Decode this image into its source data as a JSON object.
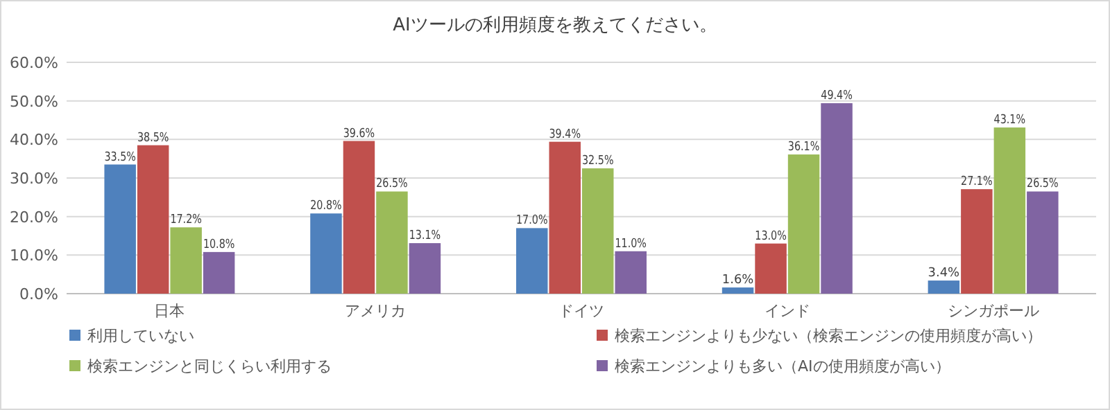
{
  "chart_data": {
    "type": "bar",
    "title": "AIツールの利用頻度を教えてください。",
    "categories": [
      "日本",
      "アメリカ",
      "ドイツ",
      "インド",
      "シンガポール"
    ],
    "series": [
      {
        "name": "利用していない",
        "color": "#4f81bd",
        "values": [
          33.5,
          20.8,
          17.0,
          1.6,
          3.4
        ],
        "value_labels": [
          "33.5%",
          "20.8%",
          "17.0%",
          "1.6%",
          "3.4%"
        ]
      },
      {
        "name": "検索エンジンよりも少ない（検索エンジンの使用頻度が高い）",
        "color": "#c0504d",
        "values": [
          38.5,
          39.6,
          39.4,
          13.0,
          27.1
        ],
        "value_labels": [
          "38.5%",
          "39.6%",
          "39.4%",
          "13.0%",
          "27.1%"
        ]
      },
      {
        "name": "検索エンジンと同じくらい利用する",
        "color": "#9bbb59",
        "values": [
          17.2,
          26.5,
          32.5,
          36.1,
          43.1
        ],
        "value_labels": [
          "17.2%",
          "26.5%",
          "32.5%",
          "36.1%",
          "43.1%"
        ]
      },
      {
        "name": "検索エンジンよりも多い（AIの使用頻度が高い）",
        "color": "#8064a2",
        "values": [
          10.8,
          13.1,
          11.0,
          49.4,
          26.5
        ],
        "value_labels": [
          "10.8%",
          "13.1%",
          "11.0%",
          "49.4%",
          "26.5%"
        ]
      }
    ],
    "ylim": [
      0,
      60
    ],
    "yticks": [
      {
        "value": 0,
        "label": "0.0%"
      },
      {
        "value": 10,
        "label": "10.0%"
      },
      {
        "value": 20,
        "label": "20.0%"
      },
      {
        "value": 30,
        "label": "30.0%"
      },
      {
        "value": 40,
        "label": "40.0%"
      },
      {
        "value": 50,
        "label": "50.0%"
      },
      {
        "value": 60,
        "label": "60.0%"
      }
    ],
    "grid": "y",
    "legend": "bottom"
  }
}
